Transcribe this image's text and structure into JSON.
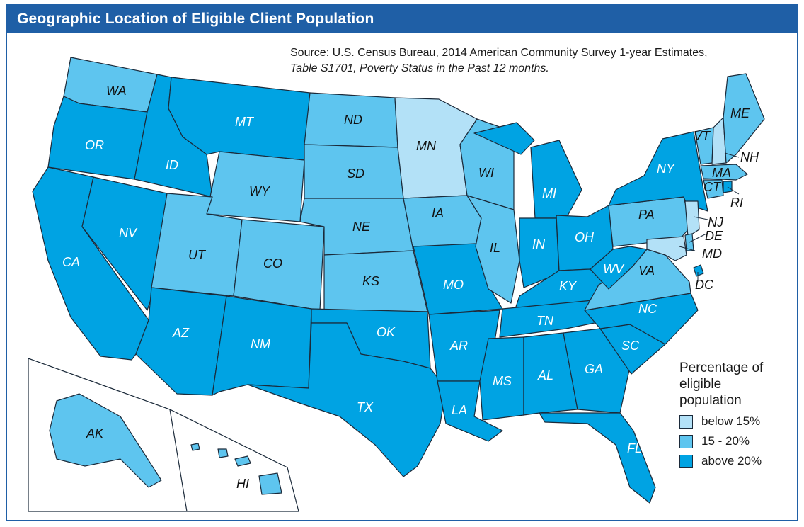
{
  "title": "Geographic Location of Eligible Client Population",
  "source": {
    "line1": "Source: U.S. Census Bureau, 2014 American Community Survey 1-year Estimates,",
    "line2": "Table S1701, Poverty Status in the Past 12 months."
  },
  "colors": {
    "below_15": "#b3e1f7",
    "between_15_20": "#5ec5ef",
    "above_20": "#00a3e3",
    "title_bar": "#1f5fa6"
  },
  "legend": {
    "title": "Percentage of eligible population",
    "items": [
      {
        "key": "below_15",
        "label": "below 15%"
      },
      {
        "key": "between_15_20",
        "label": "15 - 20%"
      },
      {
        "key": "above_20",
        "label": "above 20%"
      }
    ]
  },
  "states": {
    "WA": {
      "label": "WA",
      "category": "between_15_20"
    },
    "OR": {
      "label": "OR",
      "category": "above_20"
    },
    "CA": {
      "label": "CA",
      "category": "above_20"
    },
    "ID": {
      "label": "ID",
      "category": "above_20"
    },
    "NV": {
      "label": "NV",
      "category": "above_20"
    },
    "MT": {
      "label": "MT",
      "category": "above_20"
    },
    "WY": {
      "label": "WY",
      "category": "between_15_20"
    },
    "UT": {
      "label": "UT",
      "category": "between_15_20"
    },
    "AZ": {
      "label": "AZ",
      "category": "above_20"
    },
    "CO": {
      "label": "CO",
      "category": "between_15_20"
    },
    "NM": {
      "label": "NM",
      "category": "above_20"
    },
    "ND": {
      "label": "ND",
      "category": "between_15_20"
    },
    "SD": {
      "label": "SD",
      "category": "between_15_20"
    },
    "NE": {
      "label": "NE",
      "category": "between_15_20"
    },
    "KS": {
      "label": "KS",
      "category": "between_15_20"
    },
    "OK": {
      "label": "OK",
      "category": "above_20"
    },
    "TX": {
      "label": "TX",
      "category": "above_20"
    },
    "MN": {
      "label": "MN",
      "category": "below_15"
    },
    "IA": {
      "label": "IA",
      "category": "between_15_20"
    },
    "MO": {
      "label": "MO",
      "category": "above_20"
    },
    "AR": {
      "label": "AR",
      "category": "above_20"
    },
    "LA": {
      "label": "LA",
      "category": "above_20"
    },
    "WI": {
      "label": "WI",
      "category": "between_15_20"
    },
    "IL": {
      "label": "IL",
      "category": "between_15_20"
    },
    "MI": {
      "label": "MI",
      "category": "above_20"
    },
    "IN": {
      "label": "IN",
      "category": "above_20"
    },
    "OH": {
      "label": "OH",
      "category": "above_20"
    },
    "KY": {
      "label": "KY",
      "category": "above_20"
    },
    "TN": {
      "label": "TN",
      "category": "above_20"
    },
    "MS": {
      "label": "MS",
      "category": "above_20"
    },
    "AL": {
      "label": "AL",
      "category": "above_20"
    },
    "GA": {
      "label": "GA",
      "category": "above_20"
    },
    "FL": {
      "label": "FL",
      "category": "above_20"
    },
    "SC": {
      "label": "SC",
      "category": "above_20"
    },
    "NC": {
      "label": "NC",
      "category": "above_20"
    },
    "VA": {
      "label": "VA",
      "category": "between_15_20"
    },
    "WV": {
      "label": "WV",
      "category": "above_20"
    },
    "PA": {
      "label": "PA",
      "category": "between_15_20"
    },
    "NY": {
      "label": "NY",
      "category": "above_20"
    },
    "VT": {
      "label": "VT",
      "category": "between_15_20"
    },
    "NH": {
      "label": "NH",
      "category": "below_15"
    },
    "ME": {
      "label": "ME",
      "category": "between_15_20"
    },
    "MA": {
      "label": "MA",
      "category": "between_15_20"
    },
    "CT": {
      "label": "CT",
      "category": "between_15_20"
    },
    "RI": {
      "label": "RI",
      "category": "above_20"
    },
    "NJ": {
      "label": "NJ",
      "category": "below_15"
    },
    "DE": {
      "label": "DE",
      "category": "between_15_20"
    },
    "MD": {
      "label": "MD",
      "category": "below_15"
    },
    "DC": {
      "label": "DC",
      "category": "above_20"
    },
    "AK": {
      "label": "AK",
      "category": "between_15_20"
    },
    "HI": {
      "label": "HI",
      "category": "between_15_20"
    }
  }
}
